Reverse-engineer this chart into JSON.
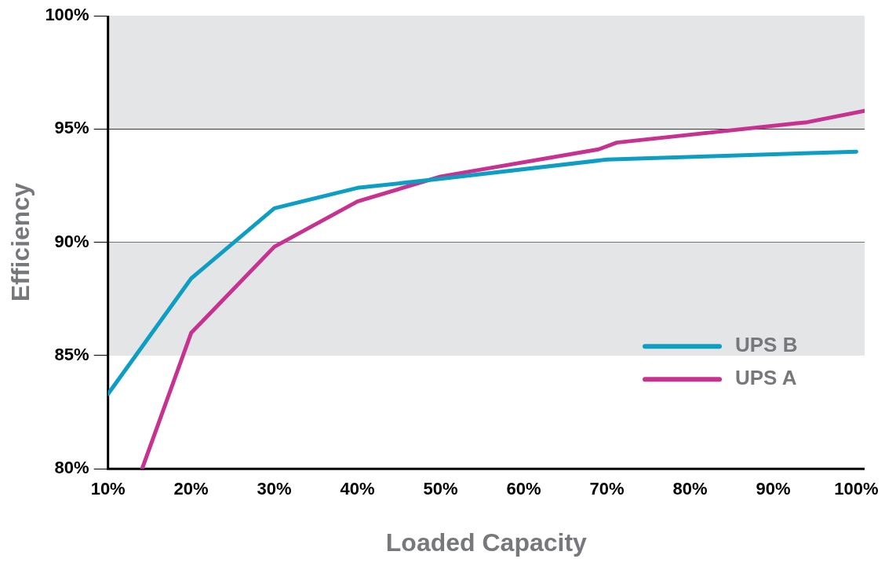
{
  "chart_data": {
    "type": "line",
    "xlabel": "Loaded Capacity",
    "ylabel": "Efficiency",
    "xlim": [
      10,
      101
    ],
    "ylim": [
      80,
      100
    ],
    "xticks": [
      {
        "value": 10,
        "label": "10%"
      },
      {
        "value": 20,
        "label": "20%"
      },
      {
        "value": 30,
        "label": "30%"
      },
      {
        "value": 40,
        "label": "40%"
      },
      {
        "value": 50,
        "label": "50%"
      },
      {
        "value": 60,
        "label": "60%"
      },
      {
        "value": 70,
        "label": "70%"
      },
      {
        "value": 80,
        "label": "80%"
      },
      {
        "value": 90,
        "label": "90%"
      },
      {
        "value": 100,
        "label": "100%"
      }
    ],
    "yticks": [
      {
        "value": 80,
        "label": "80%"
      },
      {
        "value": 85,
        "label": "85%"
      },
      {
        "value": 90,
        "label": "90%"
      },
      {
        "value": 95,
        "label": "95%"
      },
      {
        "value": 100,
        "label": "100%"
      }
    ],
    "series": [
      {
        "name": "UPS B",
        "color": "#0e9ec4",
        "x": [
          10,
          20,
          30,
          40,
          50,
          70,
          100
        ],
        "values": [
          83.3,
          88.4,
          91.5,
          92.4,
          92.8,
          93.65,
          94.0
        ]
      },
      {
        "name": "UPS A",
        "color": "#c7318f",
        "x": [
          14.1,
          20,
          30,
          40,
          50,
          69,
          71.2,
          94.1,
          101
        ],
        "values": [
          80,
          86.0,
          89.8,
          91.8,
          92.9,
          94.1,
          94.4,
          95.3,
          95.8
        ]
      }
    ],
    "bands": [
      {
        "axis": "y",
        "from": 95,
        "to": 100,
        "color": "#e4e5e7"
      },
      {
        "axis": "y",
        "from": 85,
        "to": 90,
        "color": "#e4e5e7"
      }
    ],
    "grid": "y",
    "legend": "bottom right",
    "marker": "none",
    "line_style": "solid"
  }
}
